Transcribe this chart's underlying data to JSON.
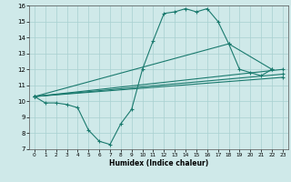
{
  "xlabel": "Humidex (Indice chaleur)",
  "xlim": [
    -0.5,
    23.5
  ],
  "ylim": [
    7,
    16
  ],
  "xticks": [
    0,
    1,
    2,
    3,
    4,
    5,
    6,
    7,
    8,
    9,
    10,
    11,
    12,
    13,
    14,
    15,
    16,
    17,
    18,
    19,
    20,
    21,
    22,
    23
  ],
  "yticks": [
    7,
    8,
    9,
    10,
    11,
    12,
    13,
    14,
    15,
    16
  ],
  "bg_color": "#cfe9e9",
  "line_color": "#1a7a6e",
  "lines": [
    {
      "x": [
        0,
        1,
        2,
        3,
        4,
        5,
        6,
        7,
        8,
        9,
        10,
        11,
        12,
        13,
        14,
        15,
        16,
        17,
        18,
        19,
        20,
        21,
        22
      ],
      "y": [
        10.3,
        9.9,
        9.9,
        9.8,
        9.6,
        8.2,
        7.5,
        7.3,
        8.6,
        9.5,
        12.0,
        13.8,
        15.5,
        15.6,
        15.8,
        15.6,
        15.8,
        15.0,
        13.6,
        12.0,
        11.8,
        11.6,
        12.0
      ]
    },
    {
      "x": [
        0,
        23
      ],
      "y": [
        10.3,
        12.0
      ]
    },
    {
      "x": [
        0,
        23
      ],
      "y": [
        10.3,
        11.7
      ]
    },
    {
      "x": [
        0,
        23
      ],
      "y": [
        10.3,
        11.5
      ]
    },
    {
      "x": [
        0,
        18,
        22
      ],
      "y": [
        10.3,
        13.6,
        12.0
      ]
    }
  ]
}
